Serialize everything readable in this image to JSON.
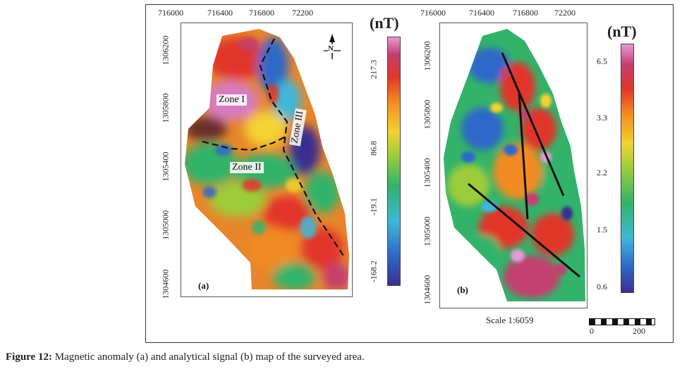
{
  "caption": {
    "prefix": "Figure 12:",
    "text": " Magnetic anomaly (a) and analytical signal (b) map of the surveyed area."
  },
  "panel_a": {
    "label": "(a)",
    "x_ticks": [
      "716000",
      "716400",
      "716800",
      "72200"
    ],
    "y_ticks": [
      "1306200",
      "1305800",
      "1305400",
      "1305000",
      "1304600"
    ],
    "zones": [
      "Zone I",
      "Zone II",
      "Zone III"
    ],
    "north_arrow": "N",
    "colorbar": {
      "unit": "(nT)",
      "ticks": [
        "217.3",
        "86.8",
        "-19.1",
        "-168.2"
      ]
    }
  },
  "panel_b": {
    "label": "(b)",
    "x_ticks": [
      "716000",
      "716400",
      "716800",
      "72200"
    ],
    "y_ticks": [
      "1306200",
      "1305800",
      "1305400",
      "1305000",
      "1304600"
    ],
    "colorbar": {
      "unit": "(nT)",
      "ticks": [
        "6.5",
        "3.3",
        "2.2",
        "1.5",
        "0.6"
      ]
    }
  },
  "scale": {
    "text": "Scale 1:6059",
    "bar_start": "0",
    "bar_end": "200"
  },
  "colors": {
    "ramp": [
      "#3b2f8f",
      "#2f67c8",
      "#40b7d8",
      "#33b36a",
      "#9ccc3a",
      "#f3d232",
      "#f28b22",
      "#e1352a",
      "#c33f6f",
      "#e59ad4"
    ]
  }
}
